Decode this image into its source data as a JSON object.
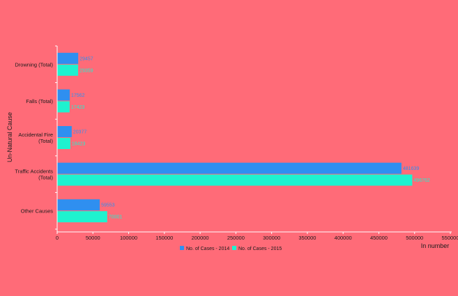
{
  "colors": {
    "background": "#ff6b78",
    "series_2014": "#2f8ff0",
    "series_2015": "#1ef2cf",
    "axis": "#ffffff",
    "text": "#1a1a1a"
  },
  "chart_data": {
    "type": "bar",
    "orientation": "horizontal",
    "title": "",
    "xlabel": "In number",
    "ylabel": "Un-Natural Cause",
    "xlim": [
      0,
      550000
    ],
    "x_ticks": [
      "0",
      "50000",
      "100000",
      "150000",
      "200000",
      "250000",
      "300000",
      "350000",
      "400000",
      "450000",
      "500000",
      "550000"
    ],
    "categories": [
      [
        "Drowning (Total)"
      ],
      [
        "Falls (Total)"
      ],
      [
        "Accidental Fire",
        "(Total)"
      ],
      [
        "Traffic Accidents",
        "(Total)"
      ],
      [
        "Other Causes"
      ]
    ],
    "series": [
      {
        "name": "No. of Cases - 2014",
        "values": [
          29457,
          17562,
          20377,
          481639,
          59553
        ],
        "labels": [
          "29457",
          "17562",
          "20377",
          "481639",
          "59553"
        ]
      },
      {
        "name": "No. of Cases - 2015",
        "values": [
          29359,
          17423,
          18423,
          496762,
          70001
        ],
        "labels": [
          "29359",
          "17423",
          "18423",
          "496762",
          "70001"
        ]
      }
    ],
    "grid": false,
    "legend_position": "bottom"
  }
}
